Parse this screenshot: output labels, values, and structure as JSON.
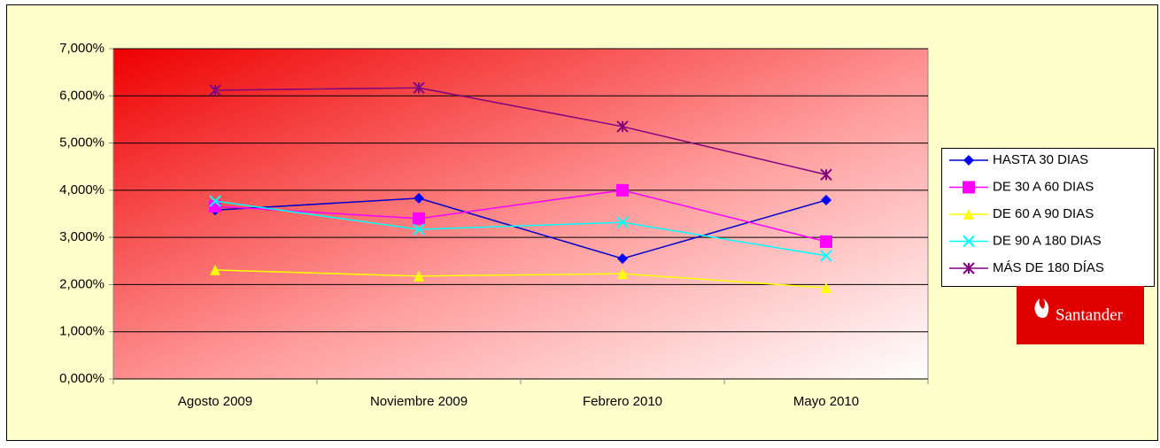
{
  "chart_data": {
    "type": "line",
    "categories": [
      "Agosto 2009",
      "Noviembre 2009",
      "Febrero 2010",
      "Mayo 2010"
    ],
    "series": [
      {
        "name": "HASTA 30 DIAS",
        "color": "#0000ff",
        "marker": "diamond",
        "values": [
          3.58,
          3.83,
          2.55,
          3.79
        ]
      },
      {
        "name": "DE 30 A 60 DIAS",
        "color": "#ff00ff",
        "marker": "square",
        "values": [
          3.66,
          3.4,
          4.0,
          2.91
        ]
      },
      {
        "name": "DE 60 A 90 DIAS",
        "color": "#ffff00",
        "marker": "triangle",
        "values": [
          2.31,
          2.18,
          2.23,
          1.93
        ]
      },
      {
        "name": "DE 90 A 180 DIAS",
        "color": "#00ffff",
        "marker": "x",
        "values": [
          3.77,
          3.17,
          3.32,
          2.61
        ]
      },
      {
        "name": "MÁS DE 180 DÍAS",
        "color": "#800080",
        "marker": "star",
        "values": [
          6.12,
          6.17,
          5.35,
          4.33
        ]
      }
    ],
    "ylim": [
      0,
      7
    ],
    "yticks": [
      {
        "value": 0,
        "label": "0,000%"
      },
      {
        "value": 1,
        "label": "1,000%"
      },
      {
        "value": 2,
        "label": "2,000%"
      },
      {
        "value": 3,
        "label": "3,000%"
      },
      {
        "value": 4,
        "label": "4,000%"
      },
      {
        "value": 5,
        "label": "5,000%"
      },
      {
        "value": 6,
        "label": "6,000%"
      },
      {
        "value": 7,
        "label": "7,000%"
      }
    ],
    "grid": true,
    "legend": "right",
    "brand": "Santander"
  }
}
